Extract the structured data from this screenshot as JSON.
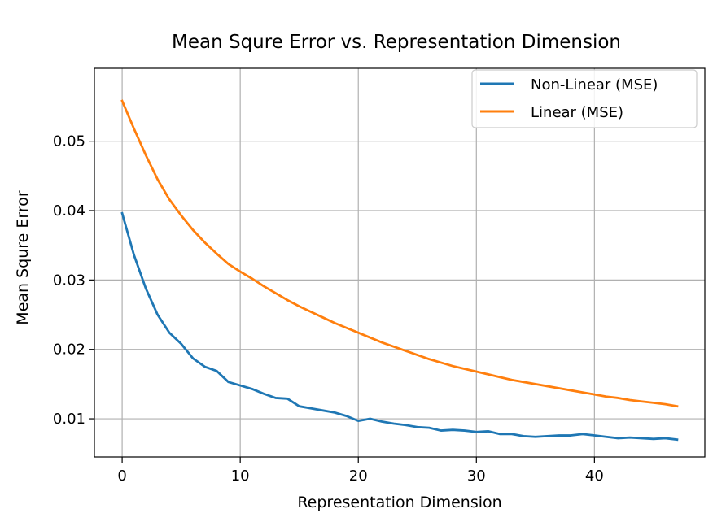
{
  "chart_data": {
    "type": "line",
    "title": "Mean Squre Error vs. Representation Dimension",
    "xlabel": "Representation Dimension",
    "ylabel": "Mean Squre Error",
    "xlim": [
      -2.35,
      49.35
    ],
    "ylim": [
      0.0045,
      0.0605
    ],
    "xticks": [
      0,
      10,
      20,
      30,
      40
    ],
    "yticks": [
      0.01,
      0.02,
      0.03,
      0.04,
      0.05
    ],
    "xtick_labels": [
      "0",
      "10",
      "20",
      "30",
      "40"
    ],
    "ytick_labels": [
      "0.01",
      "0.02",
      "0.03",
      "0.04",
      "0.05"
    ],
    "grid": true,
    "legend_position": "top-right",
    "x": [
      0,
      1,
      2,
      3,
      4,
      5,
      6,
      7,
      8,
      9,
      10,
      11,
      12,
      13,
      14,
      15,
      16,
      17,
      18,
      19,
      20,
      21,
      22,
      23,
      24,
      25,
      26,
      27,
      28,
      29,
      30,
      31,
      32,
      33,
      34,
      35,
      36,
      37,
      38,
      39,
      40,
      41,
      42,
      43,
      44,
      45,
      46,
      47
    ],
    "series": [
      {
        "name": "Non-Linear (MSE)",
        "color": "#1f77b4",
        "values": [
          0.0396,
          0.0336,
          0.0288,
          0.025,
          0.0224,
          0.0208,
          0.0187,
          0.0175,
          0.0169,
          0.0153,
          0.0148,
          0.0143,
          0.0136,
          0.013,
          0.0129,
          0.0118,
          0.0115,
          0.0112,
          0.0109,
          0.0104,
          0.0097,
          0.01,
          0.0096,
          0.0093,
          0.0091,
          0.0088,
          0.0087,
          0.0083,
          0.0084,
          0.0083,
          0.0081,
          0.0082,
          0.0078,
          0.0078,
          0.0075,
          0.0074,
          0.0075,
          0.0076,
          0.0076,
          0.0078,
          0.0076,
          0.0074,
          0.0072,
          0.0073,
          0.0072,
          0.0071,
          0.0072,
          0.007
        ]
      },
      {
        "name": "Linear (MSE)",
        "color": "#ff7f0e",
        "values": [
          0.0558,
          0.0518,
          0.048,
          0.0445,
          0.0416,
          0.0393,
          0.0372,
          0.0354,
          0.0338,
          0.0323,
          0.0312,
          0.0302,
          0.0291,
          0.0281,
          0.0271,
          0.0262,
          0.0254,
          0.0246,
          0.0238,
          0.0231,
          0.0224,
          0.0217,
          0.021,
          0.0204,
          0.0198,
          0.0192,
          0.0186,
          0.0181,
          0.0176,
          0.0172,
          0.0168,
          0.0164,
          0.016,
          0.0156,
          0.0153,
          0.015,
          0.0147,
          0.0144,
          0.0141,
          0.0138,
          0.0135,
          0.0132,
          0.013,
          0.0127,
          0.0125,
          0.0123,
          0.0121,
          0.0118
        ]
      }
    ]
  }
}
